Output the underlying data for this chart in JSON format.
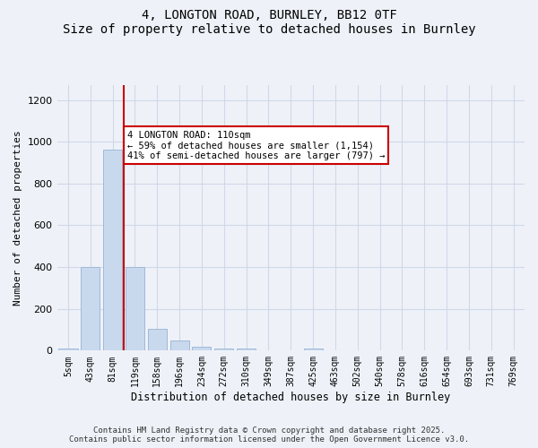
{
  "title_line1": "4, LONGTON ROAD, BURNLEY, BB12 0TF",
  "title_line2": "Size of property relative to detached houses in Burnley",
  "xlabel": "Distribution of detached houses by size in Burnley",
  "ylabel": "Number of detached properties",
  "bar_labels": [
    "5sqm",
    "43sqm",
    "81sqm",
    "119sqm",
    "158sqm",
    "196sqm",
    "234sqm",
    "272sqm",
    "310sqm",
    "349sqm",
    "387sqm",
    "425sqm",
    "463sqm",
    "502sqm",
    "540sqm",
    "578sqm",
    "616sqm",
    "654sqm",
    "693sqm",
    "731sqm",
    "769sqm"
  ],
  "bar_values": [
    10,
    400,
    960,
    400,
    105,
    50,
    20,
    12,
    8,
    0,
    0,
    10,
    0,
    0,
    0,
    0,
    0,
    0,
    0,
    0,
    0
  ],
  "bar_color": "#c9d9ed",
  "bar_edgecolor": "#a0b8d8",
  "redline_index": 2.5,
  "annotation_text": "4 LONGTON ROAD: 110sqm\n← 59% of detached houses are smaller (1,154)\n41% of semi-detached houses are larger (797) →",
  "annotation_box_color": "#ffffff",
  "annotation_box_edgecolor": "#cc0000",
  "redline_color": "#cc0000",
  "ylim": [
    0,
    1270
  ],
  "yticks": [
    0,
    200,
    400,
    600,
    800,
    1000,
    1200
  ],
  "grid_color": "#d0d8e8",
  "bg_color": "#eef2f8",
  "footer_line1": "Contains HM Land Registry data © Crown copyright and database right 2025.",
  "footer_line2": "Contains public sector information licensed under the Open Government Licence v3.0."
}
